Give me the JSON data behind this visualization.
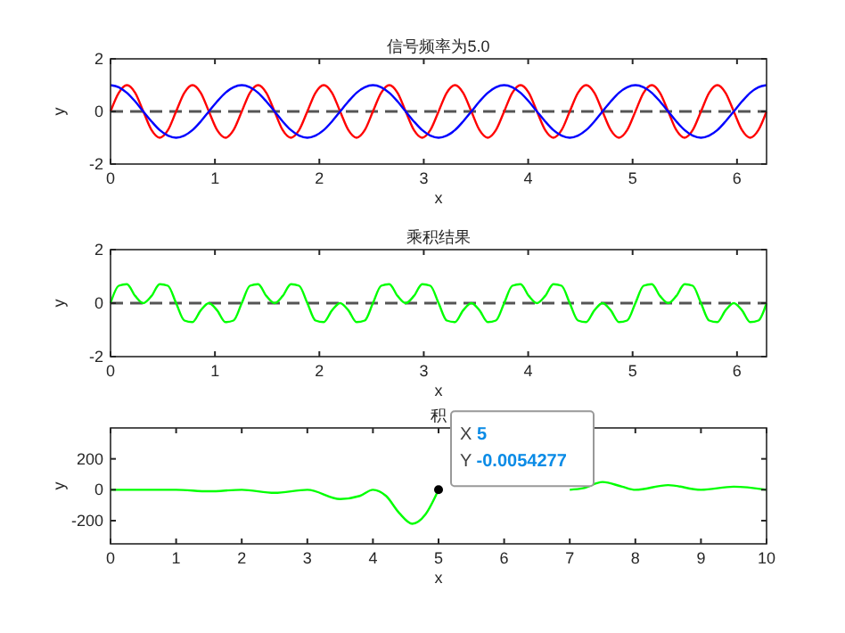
{
  "chart_data": [
    {
      "type": "line",
      "title": "信号频率为5.0",
      "xlabel": "x",
      "ylabel": "y",
      "xlim": [
        0,
        6.283
      ],
      "ylim": [
        -2,
        2
      ],
      "xticks": [
        0,
        1,
        2,
        3,
        4,
        5,
        6
      ],
      "yticks": [
        -2,
        0,
        2
      ],
      "x": [
        0,
        0.079,
        0.157,
        0.236,
        0.314,
        0.393,
        0.471,
        0.55,
        0.628,
        0.707,
        0.785,
        0.864,
        0.942,
        1.021,
        1.1,
        1.178,
        1.257,
        1.335,
        1.414,
        1.492,
        1.571,
        1.649,
        1.728,
        1.806,
        1.885,
        1.963,
        2.042,
        2.121,
        2.199,
        2.278,
        2.356,
        2.435,
        2.513,
        2.592,
        2.67,
        2.749,
        2.827,
        2.906,
        2.985,
        3.063,
        3.142,
        3.22,
        3.299,
        3.377,
        3.456,
        3.534,
        3.613,
        3.691,
        3.77,
        3.848,
        3.927,
        4.006,
        4.084,
        4.163,
        4.241,
        4.32,
        4.398,
        4.477,
        4.555,
        4.634,
        4.712,
        4.791,
        4.869,
        4.948,
        5.027,
        5.105,
        5.184,
        5.262,
        5.341,
        5.419,
        5.498,
        5.576,
        5.655,
        5.733,
        5.812,
        5.89,
        5.969,
        6.048,
        6.126,
        6.205,
        6.283
      ],
      "series": [
        {
          "color": "#ff0000",
          "values": [
            0,
            0.71,
            1,
            0.71,
            0,
            -0.71,
            -1,
            -0.71,
            0,
            0.71,
            1,
            0.71,
            0,
            -0.71,
            -1,
            -0.71,
            0,
            0.71,
            1,
            0.71,
            0,
            -0.71,
            -1,
            -0.71,
            0,
            0.71,
            1,
            0.71,
            0,
            -0.71,
            -1,
            -0.71,
            0,
            0.71,
            1,
            0.71,
            0,
            -0.71,
            -1,
            -0.71,
            0,
            0.71,
            1,
            0.71,
            0,
            -0.71,
            -1,
            -0.71,
            0,
            0.71,
            1,
            0.71,
            0,
            -0.71,
            -1,
            -0.71,
            0,
            0.71,
            1,
            0.71,
            0,
            -0.71,
            -1,
            -0.71,
            0,
            0.71,
            1,
            0.71,
            0,
            -0.71,
            -1,
            -0.71,
            0,
            0.71,
            1,
            0.71,
            0,
            -0.71,
            -1,
            -0.71,
            0
          ]
        },
        {
          "color": "#0000ff",
          "values": [
            1,
            0.92,
            0.71,
            0.38,
            0,
            -0.38,
            -0.71,
            -0.92,
            -1,
            -0.92,
            -0.71,
            -0.38,
            0,
            0.38,
            0.71,
            0.92,
            1,
            0.92,
            0.71,
            0.38,
            0,
            -0.38,
            -0.71,
            -0.92,
            -1,
            -0.92,
            -0.71,
            -0.38,
            0,
            0.38,
            0.71,
            0.92,
            1,
            0.92,
            0.71,
            0.38,
            0,
            -0.38,
            -0.71,
            -0.92,
            -1,
            -0.92,
            -0.71,
            -0.38,
            0,
            0.38,
            0.71,
            0.92,
            1,
            0.92,
            0.71,
            0.38,
            0,
            -0.38,
            -0.71,
            -0.92,
            -1,
            -0.92,
            -0.71,
            -0.38,
            0,
            0.38,
            0.71,
            0.92,
            1,
            0.92,
            0.71,
            0.38,
            0,
            -0.38,
            -0.71,
            -0.92,
            -1,
            -0.92,
            -0.71,
            -0.38,
            0,
            0.38,
            0.71,
            0.92,
            1
          ]
        }
      ],
      "ref_lines": [
        {
          "axis": "y",
          "value": 0,
          "color": "#555555",
          "line_style": "dashed"
        }
      ]
    },
    {
      "type": "line",
      "title": "乘积结果",
      "xlabel": "x",
      "ylabel": "y",
      "xlim": [
        0,
        6.283
      ],
      "ylim": [
        -2,
        2
      ],
      "xticks": [
        0,
        1,
        2,
        3,
        4,
        5,
        6
      ],
      "yticks": [
        -2,
        0,
        2
      ],
      "x": [
        0,
        0.079,
        0.157,
        0.236,
        0.314,
        0.393,
        0.471,
        0.55,
        0.628,
        0.707,
        0.785,
        0.864,
        0.942,
        1.021,
        1.1,
        1.178,
        1.257,
        1.335,
        1.414,
        1.492,
        1.571,
        1.649,
        1.728,
        1.806,
        1.885,
        1.963,
        2.042,
        2.121,
        2.199,
        2.278,
        2.356,
        2.435,
        2.513,
        2.592,
        2.67,
        2.749,
        2.827,
        2.906,
        2.985,
        3.063,
        3.142,
        3.22,
        3.299,
        3.377,
        3.456,
        3.534,
        3.613,
        3.691,
        3.77,
        3.848,
        3.927,
        4.006,
        4.084,
        4.163,
        4.241,
        4.32,
        4.398,
        4.477,
        4.555,
        4.634,
        4.712,
        4.791,
        4.869,
        4.948,
        5.027,
        5.105,
        5.184,
        5.262,
        5.341,
        5.419,
        5.498,
        5.576,
        5.655,
        5.733,
        5.812,
        5.89,
        5.969,
        6.048,
        6.126,
        6.205,
        6.283
      ],
      "series": [
        {
          "color": "#00ff00",
          "values": [
            0,
            0.65,
            0.71,
            0.27,
            0,
            0.27,
            0.71,
            0.65,
            0,
            -0.65,
            -0.71,
            -0.27,
            0,
            -0.27,
            -0.71,
            -0.65,
            0,
            0.65,
            0.71,
            0.27,
            0,
            0.27,
            0.71,
            0.65,
            0,
            -0.65,
            -0.71,
            -0.27,
            0,
            -0.27,
            -0.71,
            -0.65,
            0,
            0.65,
            0.71,
            0.27,
            0,
            0.27,
            0.71,
            0.65,
            0,
            -0.65,
            -0.71,
            -0.27,
            0,
            -0.27,
            -0.71,
            -0.65,
            0,
            0.65,
            0.71,
            0.27,
            0,
            0.27,
            0.71,
            0.65,
            0,
            -0.65,
            -0.71,
            -0.27,
            0,
            -0.27,
            -0.71,
            -0.65,
            0,
            0.65,
            0.71,
            0.27,
            0,
            0.27,
            0.71,
            0.65,
            0,
            -0.65,
            -0.71,
            -0.27,
            0,
            -0.27,
            -0.71,
            -0.65,
            0
          ]
        }
      ],
      "ref_lines": [
        {
          "axis": "y",
          "value": 0,
          "color": "#555555",
          "line_style": "dashed"
        }
      ]
    },
    {
      "type": "line",
      "title": "积",
      "xlabel": "x",
      "ylabel": "y",
      "xlim": [
        0,
        10
      ],
      "ylim": [
        -350,
        400
      ],
      "xticks": [
        0,
        1,
        2,
        3,
        4,
        5,
        6,
        7,
        8,
        9,
        10
      ],
      "yticks": [
        -200,
        0,
        200
      ],
      "x": [
        0,
        0.5,
        1,
        1.5,
        2,
        2.5,
        3,
        3.5,
        3.8,
        4,
        4.2,
        4.4,
        4.6,
        4.8,
        5,
        5.5,
        6,
        6.5,
        7,
        7.2,
        7.5,
        7.8,
        8,
        8.5,
        9,
        9.5,
        10
      ],
      "series": [
        {
          "color": "#00ff00",
          "values": [
            0,
            0,
            0,
            -10,
            0,
            -20,
            0,
            -60,
            -40,
            0,
            -40,
            -150,
            -220,
            -160,
            -0.0054277,
            null,
            null,
            null,
            0,
            10,
            50,
            20,
            0,
            30,
            0,
            20,
            0
          ]
        }
      ],
      "annotations": [
        {
          "text": "X 5\nY -0.0054277",
          "x": 5,
          "y": -0.0054277
        }
      ]
    }
  ]
}
